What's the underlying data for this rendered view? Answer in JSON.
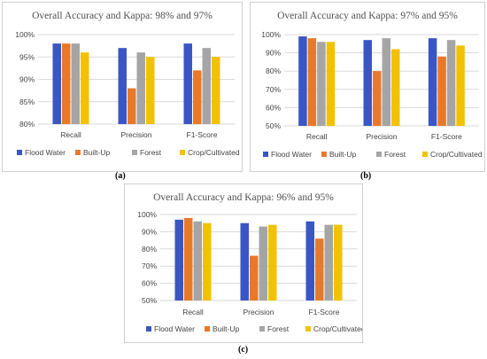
{
  "colors": {
    "flood": "#3a56c5",
    "built": "#e8792a",
    "forest": "#a5a5a5",
    "crop": "#f2c200",
    "grid": "#d9d9d9"
  },
  "chart_data": [
    {
      "type": "bar",
      "caption": "(a)",
      "title": "Overall Accuracy and Kappa: 98% and 97%",
      "categories": [
        "Recall",
        "Precision",
        "F1-Score"
      ],
      "ylim": [
        80,
        100
      ],
      "yticks": [
        "100%",
        "95%",
        "90%",
        "85%",
        "80%"
      ],
      "ytick_values": [
        100,
        95,
        90,
        85,
        80
      ],
      "grid": true,
      "legend_position": "bottom",
      "series": [
        {
          "name": "Flood Water",
          "color_key": "flood",
          "values": [
            98,
            97,
            98
          ]
        },
        {
          "name": "Built-Up",
          "color_key": "built",
          "values": [
            98,
            88,
            92
          ]
        },
        {
          "name": "Forest",
          "color_key": "forest",
          "values": [
            98,
            96,
            97
          ]
        },
        {
          "name": "Crop/Cultivated",
          "color_key": "crop",
          "values": [
            96,
            95,
            95
          ]
        }
      ]
    },
    {
      "type": "bar",
      "caption": "(b)",
      "title": "Overall Accuracy and Kappa: 97% and 95%",
      "categories": [
        "Recall",
        "Precision",
        "F1-Score"
      ],
      "ylim": [
        50,
        100
      ],
      "yticks": [
        "100%",
        "90%",
        "80%",
        "70%",
        "60%",
        "50%"
      ],
      "ytick_values": [
        100,
        90,
        80,
        70,
        60,
        50
      ],
      "grid": true,
      "legend_position": "bottom",
      "series": [
        {
          "name": "Flood  Water",
          "color_key": "flood",
          "values": [
            99,
            97,
            98
          ]
        },
        {
          "name": "Built-Up",
          "color_key": "built",
          "values": [
            98,
            80,
            88
          ]
        },
        {
          "name": "Forest",
          "color_key": "forest",
          "values": [
            96,
            98,
            97
          ]
        },
        {
          "name": "Crop/Cultivated",
          "color_key": "crop",
          "values": [
            96,
            92,
            94
          ]
        }
      ]
    },
    {
      "type": "bar",
      "caption": "(c)",
      "title": "Overall Accuracy and Kappa: 96% and 95%",
      "categories": [
        "Recall",
        "Precision",
        "F1-Score"
      ],
      "ylim": [
        50,
        100
      ],
      "yticks": [
        "100%",
        "90%",
        "80%",
        "70%",
        "60%",
        "50%"
      ],
      "ytick_values": [
        100,
        90,
        80,
        70,
        60,
        50
      ],
      "grid": true,
      "legend_position": "bottom",
      "series": [
        {
          "name": "Flood Water",
          "color_key": "flood",
          "values": [
            97,
            95,
            96
          ]
        },
        {
          "name": "Built-Up",
          "color_key": "built",
          "values": [
            98,
            76,
            86
          ]
        },
        {
          "name": "Forest",
          "color_key": "forest",
          "values": [
            96,
            93,
            94
          ]
        },
        {
          "name": "Crop/Cultivated",
          "color_key": "crop",
          "values": [
            95,
            94,
            94
          ]
        }
      ]
    }
  ]
}
